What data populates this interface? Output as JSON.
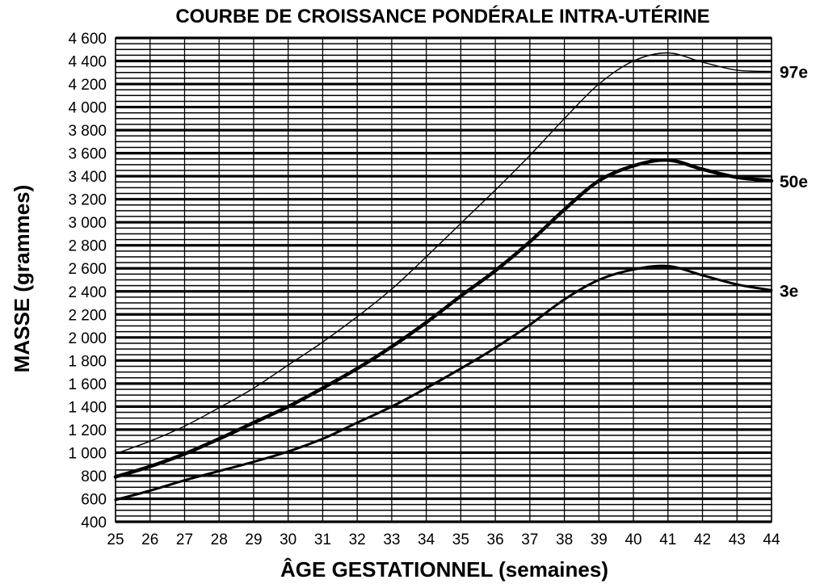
{
  "chart_data": {
    "type": "line",
    "title": "COURBE DE CROISSANCE PONDÉRALE INTRA-UTÉRINE",
    "xlabel": "ÂGE GESTATIONNEL (semaines)",
    "ylabel": "MASSE (grammes)",
    "xlim": [
      25,
      44
    ],
    "ylim": [
      400,
      4600
    ],
    "x_ticks": [
      25,
      26,
      27,
      28,
      29,
      30,
      31,
      32,
      33,
      34,
      35,
      36,
      37,
      38,
      39,
      40,
      41,
      42,
      43,
      44
    ],
    "y_ticks": [
      400,
      600,
      800,
      1000,
      1200,
      1400,
      1600,
      1800,
      2000,
      2200,
      2400,
      2600,
      2800,
      3000,
      3200,
      3400,
      3600,
      3800,
      4000,
      4200,
      4400,
      4600
    ],
    "y_tick_labels": [
      "400",
      "600",
      "800",
      "1 000",
      "1 200",
      "1 400",
      "1 600",
      "1 800",
      "2 000",
      "2 200",
      "2 400",
      "2 600",
      "2 800",
      "3 000",
      "3 200",
      "3 400",
      "3 600",
      "3 800",
      "4 000",
      "4 200",
      "4 400",
      "4 600"
    ],
    "grid": true,
    "x": [
      25,
      26,
      27,
      28,
      29,
      30,
      31,
      32,
      33,
      34,
      35,
      36,
      37,
      38,
      39,
      40,
      41,
      42,
      43,
      44
    ],
    "series": [
      {
        "name": "97e",
        "label": "97e",
        "line_weight": "thin",
        "values": [
          990,
          1100,
          1230,
          1390,
          1560,
          1760,
          1960,
          2180,
          2420,
          2700,
          2990,
          3280,
          3580,
          3900,
          4200,
          4400,
          4470,
          4390,
          4320,
          4310
        ]
      },
      {
        "name": "50e",
        "label": "50e",
        "line_weight": "thick",
        "values": [
          790,
          880,
          990,
          1120,
          1260,
          1400,
          1560,
          1730,
          1920,
          2130,
          2360,
          2580,
          2830,
          3110,
          3360,
          3490,
          3540,
          3460,
          3390,
          3360
        ]
      },
      {
        "name": "3e",
        "label": "3e",
        "line_weight": "medium",
        "values": [
          590,
          670,
          760,
          840,
          920,
          1010,
          1120,
          1260,
          1400,
          1560,
          1730,
          1910,
          2110,
          2330,
          2500,
          2590,
          2620,
          2540,
          2460,
          2410
        ]
      }
    ],
    "legend": "inline-right"
  }
}
